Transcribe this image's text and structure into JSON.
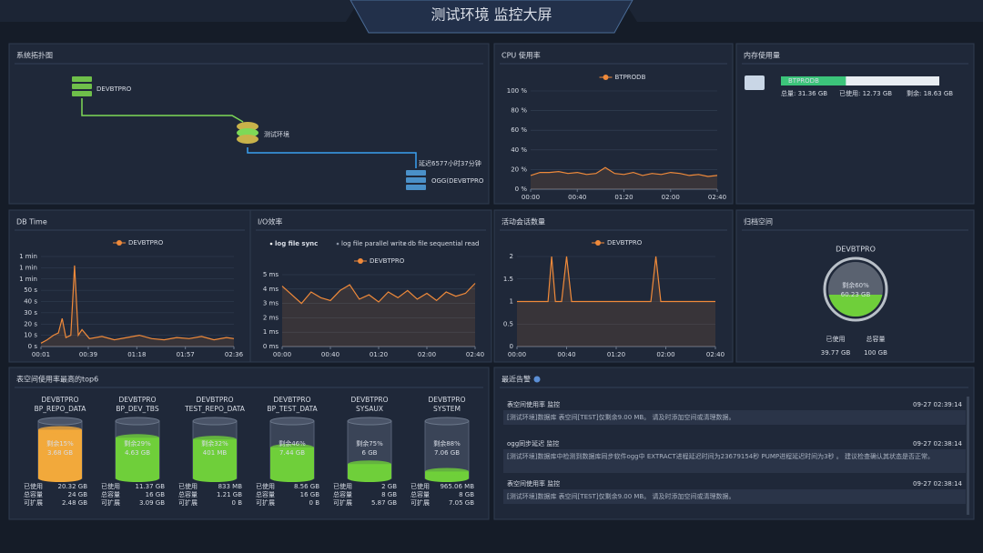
{
  "header": {
    "title": "测试环境 监控大屏"
  },
  "topology": {
    "title": "系统拓扑图",
    "nodes": [
      "DEVBTPRO",
      "测试环境",
      "OGG(DEVBTPRO"
    ],
    "edge_label": "延迟6577小时37分钟"
  },
  "memory": {
    "title": "内存使用量",
    "name": "BTPRODB",
    "used_percent": 41,
    "total": "总量: 31.36 GB",
    "used": "已使用: 12.73 GB",
    "free": "剩余: 18.63 GB"
  },
  "archive": {
    "title": "归档空间",
    "name": "DEVBTPRO",
    "remaining": {
      "value": 60,
      "label": "剩余60%"
    },
    "remaining_size": "60.23 GB",
    "used_label": "已使用",
    "used": "39.77 GB",
    "total_label": "总容量",
    "total": "100 GB"
  },
  "tablespaces": {
    "title": "表空间使用率最高的top6",
    "labels": [
      "已使用",
      "总容量",
      "可扩展"
    ],
    "items": [
      {
        "db": "DEVBTPRO",
        "name": "BP_REPO_DATA",
        "remaining": {
          "value": 15,
          "label": "剩余15%"
        },
        "size": "3.68 GB",
        "used": "20.32 GB",
        "total": "24 GB",
        "extensible": "2.48 GB",
        "color": "#f2a93b"
      },
      {
        "db": "DEVBTPRO",
        "name": "BP_DEV_TBS",
        "remaining": {
          "value": 29,
          "label": "剩余29%"
        },
        "size": "4.63 GB",
        "used": "11.37 GB",
        "total": "16 GB",
        "extensible": "3.09 GB",
        "color": "#6fcf3a"
      },
      {
        "db": "DEVBTPRO",
        "name": "TEST_REPO_DATA",
        "remaining": {
          "value": 32,
          "label": "剩余32%"
        },
        "size": "401 MB",
        "used": "833 MB",
        "total": "1.21 GB",
        "extensible": "0 B",
        "color": "#6fcf3a"
      },
      {
        "db": "DEVBTPRO",
        "name": "BP_TEST_DATA",
        "remaining": {
          "value": 46,
          "label": "剩余46%"
        },
        "size": "7.44 GB",
        "used": "8.56 GB",
        "total": "16 GB",
        "extensible": "0 B",
        "color": "#6fcf3a"
      },
      {
        "db": "DEVBTPRO",
        "name": "SYSAUX",
        "remaining": {
          "value": 75,
          "label": "剩余75%"
        },
        "size": "6 GB",
        "used": "2 GB",
        "total": "8 GB",
        "extensible": "5.87 GB",
        "color": "#6fcf3a"
      },
      {
        "db": "DEVBTPRO",
        "name": "SYSTEM",
        "remaining": {
          "value": 88,
          "label": "剩余88%"
        },
        "size": "7.06 GB",
        "used": "965.06 MB",
        "total": "8 GB",
        "extensible": "7.05 GB",
        "color": "#6fcf3a"
      }
    ]
  },
  "alerts": {
    "title": "最近告警",
    "items": [
      {
        "title": "表空间使用率 监控",
        "time": "09-27 02:39:14",
        "text": "[测试环境]数据库 表空间[TEST]仅剩余9.00 MB。 请及时添加空间或清理数据。"
      },
      {
        "title": "ogg同步延迟 监控",
        "time": "09-27 02:38:14",
        "text": "[测试环境]数据库中检测到数据库同步软件ogg中 EXTRACT进程延迟时间为23679154秒 PUMP进程延迟时间为3秒 。 建议检查确认其状态是否正常。"
      },
      {
        "title": "表空间使用率 监控",
        "time": "09-27 02:38:14",
        "text": "[测试环境]数据库 表空间[TEST]仅剩余9.00 MB。 请及时添加空间或清理数据。"
      }
    ]
  },
  "chart_data": [
    {
      "type": "line",
      "title": "CPU 使用率",
      "x": [
        0,
        8,
        16,
        24,
        32,
        40,
        48,
        56,
        64,
        72,
        80,
        88,
        96,
        104,
        112,
        120,
        128,
        136,
        144,
        152,
        160
      ],
      "series": [
        {
          "name": "BTPRODB",
          "color": "#f08a3a",
          "values": [
            14,
            17,
            17,
            18,
            16,
            17,
            15,
            16,
            22,
            16,
            15,
            17,
            14,
            16,
            15,
            17,
            16,
            14,
            15,
            13,
            14
          ]
        }
      ],
      "xlim": [
        0,
        160
      ],
      "xticks": [
        {
          "value": 0,
          "label": "00:00"
        },
        {
          "value": 40,
          "label": "00:40"
        },
        {
          "value": 80,
          "label": "01:20"
        },
        {
          "value": 120,
          "label": "02:00"
        },
        {
          "value": 160,
          "label": "02:40"
        }
      ],
      "ylim": [
        0,
        100
      ],
      "yticks": [
        {
          "value": 0,
          "label": "0 %"
        },
        {
          "value": 20,
          "label": "20 %"
        },
        {
          "value": 40,
          "label": "40 %"
        },
        {
          "value": 60,
          "label": "60 %"
        },
        {
          "value": 80,
          "label": "80 %"
        },
        {
          "value": 100,
          "label": "100 %"
        }
      ]
    },
    {
      "type": "line",
      "title": "DB Time",
      "x": [
        1,
        6,
        11,
        15,
        18,
        21,
        25,
        28,
        31,
        34,
        40,
        50,
        60,
        70,
        80,
        90,
        100,
        110,
        120,
        130,
        140,
        150,
        156
      ],
      "series": [
        {
          "name": "DEVBTPRO",
          "color": "#f08a3a",
          "values": [
            3,
            6,
            10,
            12,
            25,
            8,
            10,
            72,
            10,
            15,
            7,
            9,
            6,
            8,
            10,
            7,
            6,
            8,
            7,
            9,
            6,
            8,
            7
          ]
        }
      ],
      "xlim": [
        1,
        156
      ],
      "xticks": [
        {
          "value": 1,
          "label": "00:01"
        },
        {
          "value": 39,
          "label": "00:39"
        },
        {
          "value": 78,
          "label": "01:18"
        },
        {
          "value": 117,
          "label": "01:57"
        },
        {
          "value": 156,
          "label": "02:36"
        }
      ],
      "ylim": [
        0,
        80
      ],
      "yticks": [
        {
          "value": 0,
          "label": "0 s"
        },
        {
          "value": 10,
          "label": "10 s"
        },
        {
          "value": 20,
          "label": "20 s"
        },
        {
          "value": 30,
          "label": "30 s"
        },
        {
          "value": 40,
          "label": "40 s"
        },
        {
          "value": 50,
          "label": "50 s"
        },
        {
          "value": 60,
          "label": "1 min"
        },
        {
          "value": 70,
          "label": "1 min"
        },
        {
          "value": 80,
          "label": "1 min"
        }
      ]
    },
    {
      "type": "line",
      "title": "I/O效率",
      "tabs": [
        "log file sync",
        "log file parallel write",
        "db file sequential read"
      ],
      "active_tab": 0,
      "x": [
        0,
        8,
        16,
        24,
        32,
        40,
        48,
        56,
        64,
        72,
        80,
        88,
        96,
        104,
        112,
        120,
        128,
        136,
        144,
        152,
        160
      ],
      "series": [
        {
          "name": "DEVBTPRO",
          "color": "#f08a3a",
          "values": [
            4.2,
            3.6,
            3.0,
            3.8,
            3.4,
            3.2,
            3.9,
            4.3,
            3.3,
            3.6,
            3.1,
            3.8,
            3.4,
            3.9,
            3.3,
            3.7,
            3.2,
            3.8,
            3.5,
            3.7,
            4.4
          ]
        }
      ],
      "xlim": [
        0,
        160
      ],
      "xticks": [
        {
          "value": 0,
          "label": "00:00"
        },
        {
          "value": 40,
          "label": "00:40"
        },
        {
          "value": 80,
          "label": "01:20"
        },
        {
          "value": 120,
          "label": "02:00"
        },
        {
          "value": 160,
          "label": "02:40"
        }
      ],
      "ylim": [
        0,
        5
      ],
      "yticks": [
        {
          "value": 0,
          "label": "0 ms"
        },
        {
          "value": 1,
          "label": "1 ms"
        },
        {
          "value": 2,
          "label": "2 ms"
        },
        {
          "value": 3,
          "label": "3 ms"
        },
        {
          "value": 4,
          "label": "4 ms"
        },
        {
          "value": 5,
          "label": "5 ms"
        }
      ]
    },
    {
      "type": "line",
      "title": "活动会话数量",
      "x": [
        0,
        20,
        25,
        28,
        31,
        36,
        40,
        44,
        60,
        100,
        108,
        112,
        116,
        140,
        160
      ],
      "series": [
        {
          "name": "DEVBTPRO",
          "color": "#f08a3a",
          "values": [
            1,
            1,
            1,
            2,
            1,
            1,
            2,
            1,
            1,
            1,
            1,
            2,
            1,
            1,
            1
          ]
        }
      ],
      "xlim": [
        0,
        160
      ],
      "xticks": [
        {
          "value": 0,
          "label": "00:00"
        },
        {
          "value": 40,
          "label": "00:40"
        },
        {
          "value": 80,
          "label": "01:20"
        },
        {
          "value": 120,
          "label": "02:00"
        },
        {
          "value": 160,
          "label": "02:40"
        }
      ],
      "ylim": [
        0,
        2
      ],
      "yticks": [
        0,
        0.5,
        1,
        1.5,
        2
      ]
    }
  ]
}
